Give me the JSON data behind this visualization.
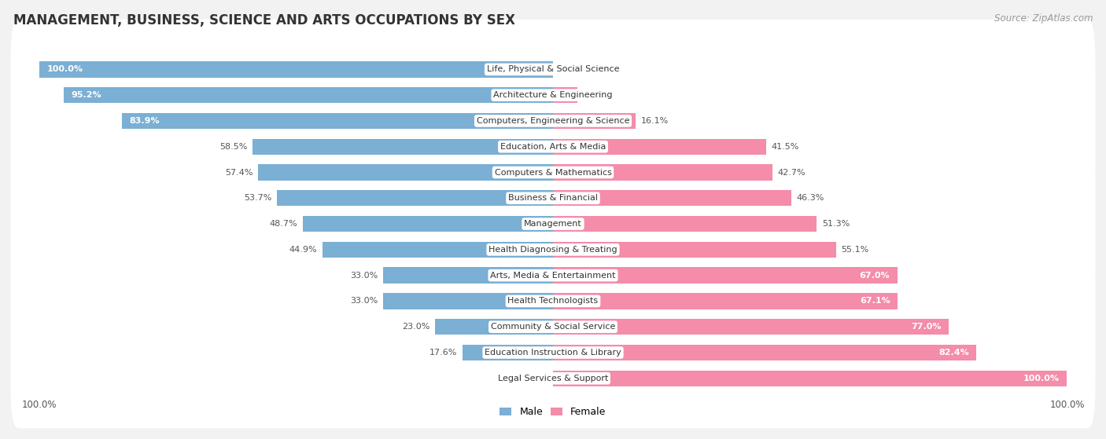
{
  "title": "MANAGEMENT, BUSINESS, SCIENCE AND ARTS OCCUPATIONS BY SEX",
  "source": "Source: ZipAtlas.com",
  "categories": [
    "Life, Physical & Social Science",
    "Architecture & Engineering",
    "Computers, Engineering & Science",
    "Education, Arts & Media",
    "Computers & Mathematics",
    "Business & Financial",
    "Management",
    "Health Diagnosing & Treating",
    "Arts, Media & Entertainment",
    "Health Technologists",
    "Community & Social Service",
    "Education Instruction & Library",
    "Legal Services & Support"
  ],
  "male": [
    100.0,
    95.2,
    83.9,
    58.5,
    57.4,
    53.7,
    48.7,
    44.9,
    33.0,
    33.0,
    23.0,
    17.6,
    0.0
  ],
  "female": [
    0.0,
    4.8,
    16.1,
    41.5,
    42.7,
    46.3,
    51.3,
    55.1,
    67.0,
    67.1,
    77.0,
    82.4,
    100.0
  ],
  "male_color": "#7bafd4",
  "female_color": "#f48caa",
  "bg_color": "#f2f2f2",
  "row_bg_color": "#ffffff",
  "title_fontsize": 12,
  "label_fontsize": 8,
  "pct_fontsize": 8,
  "tick_fontsize": 8.5,
  "source_fontsize": 8.5,
  "male_inside_threshold": 60,
  "female_inside_threshold": 60
}
